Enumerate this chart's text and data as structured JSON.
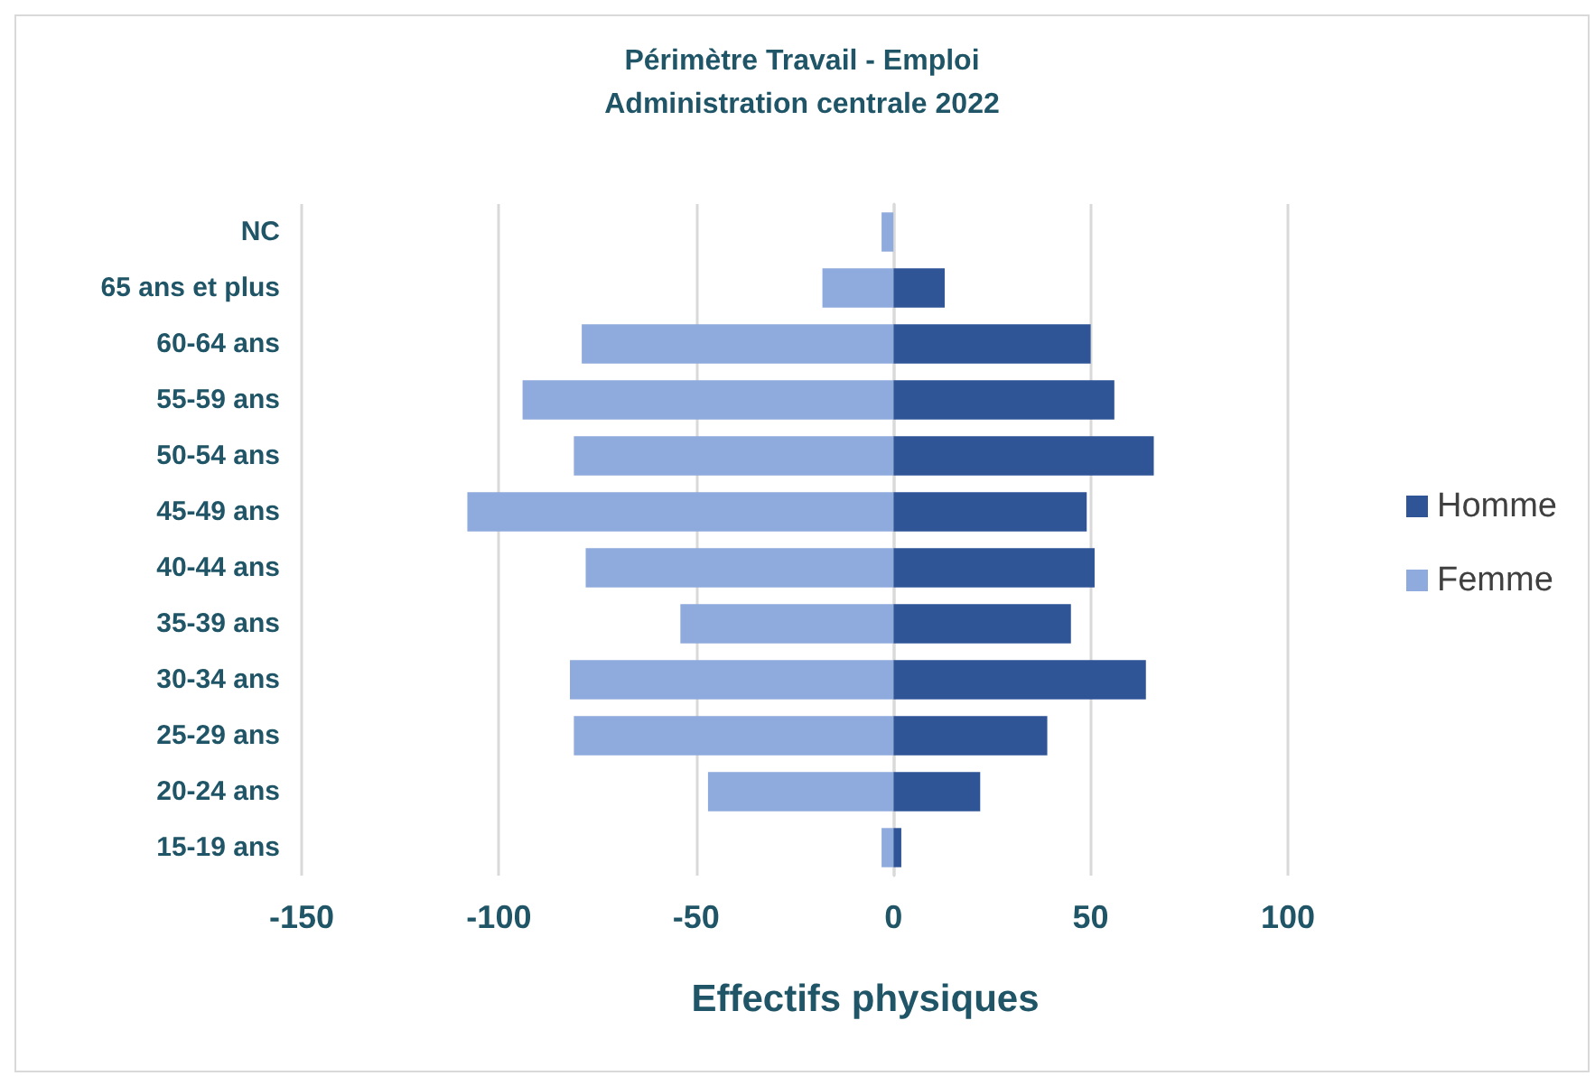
{
  "chart_data": {
    "type": "bar",
    "orientation": "horizontal",
    "stacked": true,
    "title": "Périmètre Travail - Emploi",
    "subtitle": "Administration centrale 2022",
    "xlabel": "Effectifs physiques",
    "categories": [
      "NC",
      "65 ans et plus",
      "60-64 ans",
      "55-59 ans",
      "50-54 ans",
      "45-49 ans",
      "40-44 ans",
      "35-39 ans",
      "30-34 ans",
      "25-29 ans",
      "20-24 ans",
      "15-19 ans"
    ],
    "series": [
      {
        "name": "Homme",
        "color": "#2f5597",
        "values": [
          null,
          13,
          50,
          56,
          66,
          49,
          51,
          45,
          64,
          39,
          22,
          2
        ]
      },
      {
        "name": "Femme",
        "color": "#8faadc",
        "values": [
          -3,
          -18,
          -79,
          -94,
          -81,
          -108,
          -78,
          -54,
          -82,
          -81,
          -47,
          -3
        ]
      }
    ],
    "xlim": [
      -150,
      100
    ],
    "xticks": [
      -150,
      -100,
      -50,
      0,
      50,
      100
    ],
    "grid": "x",
    "legend": "right"
  }
}
